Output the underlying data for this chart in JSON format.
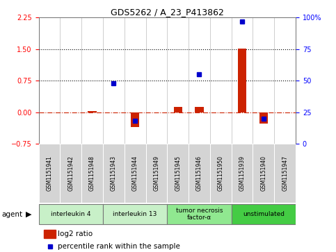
{
  "title": "GDS5262 / A_23_P413862",
  "samples": [
    "GSM1151941",
    "GSM1151942",
    "GSM1151948",
    "GSM1151943",
    "GSM1151944",
    "GSM1151949",
    "GSM1151945",
    "GSM1151946",
    "GSM1151950",
    "GSM1151939",
    "GSM1151940",
    "GSM1151947"
  ],
  "log2_ratio": [
    0.0,
    0.0,
    0.03,
    0.0,
    -0.35,
    0.0,
    0.12,
    0.13,
    0.0,
    1.52,
    -0.28,
    0.0
  ],
  "percentile_rank_pct": [
    null,
    null,
    null,
    48,
    18,
    null,
    null,
    55,
    null,
    97,
    20,
    null
  ],
  "agents": [
    {
      "label": "interleukin 4",
      "start": 0,
      "end": 2,
      "color": "#c8f0c8"
    },
    {
      "label": "interleukin 13",
      "start": 3,
      "end": 5,
      "color": "#c8f0c8"
    },
    {
      "label": "tumor necrosis\nfactor-α",
      "start": 6,
      "end": 8,
      "color": "#90e890"
    },
    {
      "label": "unstimulated",
      "start": 9,
      "end": 11,
      "color": "#44cc44"
    }
  ],
  "ylim_left": [
    -0.75,
    2.25
  ],
  "ylim_right": [
    0,
    100
  ],
  "yticks_left": [
    -0.75,
    0.0,
    0.75,
    1.5,
    2.25
  ],
  "yticks_right": [
    0,
    25,
    50,
    75,
    100
  ],
  "hlines": [
    0.75,
    1.5
  ],
  "bar_color": "#cc2200",
  "dot_color": "#0000cc",
  "bg_color": "#ffffff"
}
